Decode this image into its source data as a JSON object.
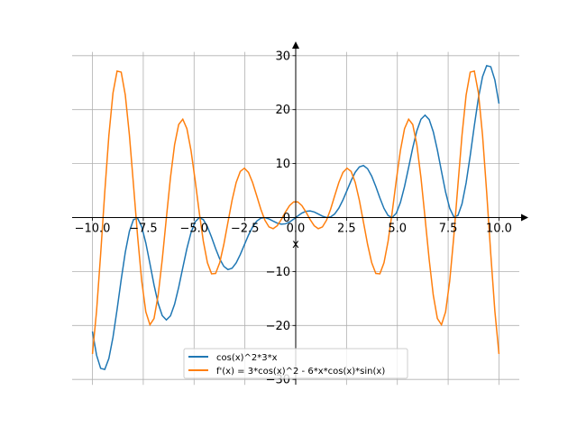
{
  "chart_data": {
    "type": "line",
    "title": "",
    "xlabel": "x",
    "ylabel": "",
    "xlim": [
      -11.0,
      11.0
    ],
    "ylim": [
      -31.0,
      30.7
    ],
    "x_range": [
      -10,
      10
    ],
    "n_samples": 100,
    "grid": true,
    "legend_placement": "bottom-center",
    "x_ticks": [
      -10,
      -7.5,
      -5,
      -2.5,
      0,
      2.5,
      5,
      7.5,
      10
    ],
    "x_tick_labels": [
      "−10.0",
      "−7.5",
      "−5.0",
      "−2.5",
      "0.0",
      "2.5",
      "5.0",
      "7.5",
      "10.0"
    ],
    "y_ticks": [
      30,
      20,
      10,
      0,
      -10,
      -20,
      -30
    ],
    "y_tick_labels": [
      "30",
      "20",
      "10",
      "0",
      "−10",
      "−20",
      "−30"
    ],
    "series": [
      {
        "name": "cos(x)^2*3*x",
        "expr": "3*x*cos(x)^2",
        "color": "#1f77b4"
      },
      {
        "name": "f'(x) = 3*cos(x)^2 - 6*x*cos(x)*sin(x)",
        "expr": "3*cos(x)^2 - 6*x*cos(x)*sin(x)",
        "color": "#ff7f0e"
      }
    ]
  }
}
